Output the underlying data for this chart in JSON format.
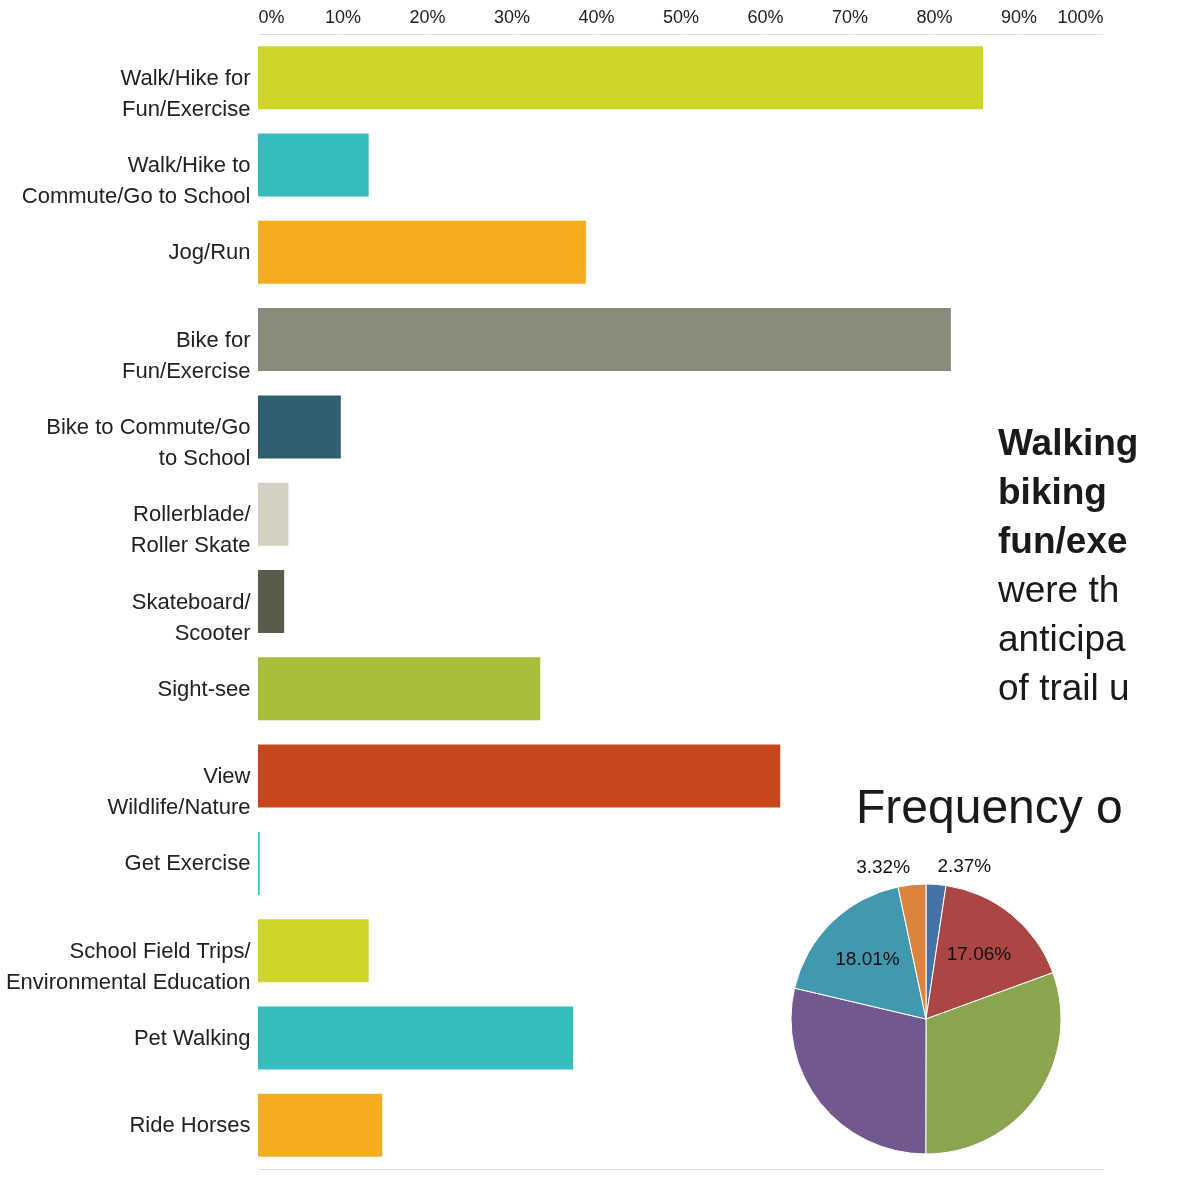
{
  "chart_data": [
    {
      "type": "bar",
      "orientation": "horizontal",
      "categories": [
        "Walk/Hike for\nFun/Exercise",
        "Walk/Hike to\nCommute/Go to School",
        "Jog/Run",
        "Bike for\nFun/Exercise",
        "Bike to Commute/Go\nto School",
        "Rollerblade/\nRoller Skate",
        "Skateboard/\nScooter",
        "Sight-see",
        "View\nWildlife/Nature",
        "Get Exercise",
        "School Field Trips/\nEnvironmental Education",
        "Pet Walking",
        "Ride Horses"
      ],
      "values": [
        85.8,
        13.1,
        38.8,
        82.0,
        9.8,
        3.6,
        3.1,
        33.4,
        61.8,
        0.2,
        13.1,
        37.3,
        14.7
      ],
      "colors": [
        "#cfd62a",
        "#33bdbf",
        "#f5ad1f",
        "#8a8b7a",
        "#2e5f6e",
        "#d2d1c2",
        "#5b5b4c",
        "#aabd3a",
        "#c8461b",
        "#33bdbf",
        "#cfd62a",
        "#33bdbf",
        "#f5ad1f"
      ],
      "xlim": [
        0,
        100
      ],
      "xticks": [
        {
          "value": 0,
          "label": "0%"
        },
        {
          "value": 10,
          "label": "10%"
        },
        {
          "value": 20,
          "label": "20%"
        },
        {
          "value": 30,
          "label": "30%"
        },
        {
          "value": 40,
          "label": "40%"
        },
        {
          "value": 50,
          "label": "50%"
        },
        {
          "value": 60,
          "label": "60%"
        },
        {
          "value": 70,
          "label": "70%"
        },
        {
          "value": 80,
          "label": "80%"
        },
        {
          "value": 90,
          "label": "90%"
        },
        {
          "value": 100,
          "label": "100%"
        }
      ],
      "grid": "x",
      "annotations": [
        "Walking",
        "biking",
        "fun/exe",
        "were th",
        "anticipa",
        "of trail u"
      ]
    },
    {
      "type": "pie",
      "title": "Frequency o",
      "categories": [
        null,
        null,
        null,
        null,
        null,
        null
      ],
      "values": [
        2.37,
        17.06,
        30.6,
        28.64,
        18.01,
        3.32
      ],
      "colors": [
        "#4572a7",
        "#aa4643",
        "#89a54e",
        "#71588f",
        "#4198af",
        "#db843d"
      ],
      "value_labels": [
        "2.37%",
        "17.06%",
        null,
        null,
        "18.01%",
        "3.32%"
      ]
    }
  ]
}
